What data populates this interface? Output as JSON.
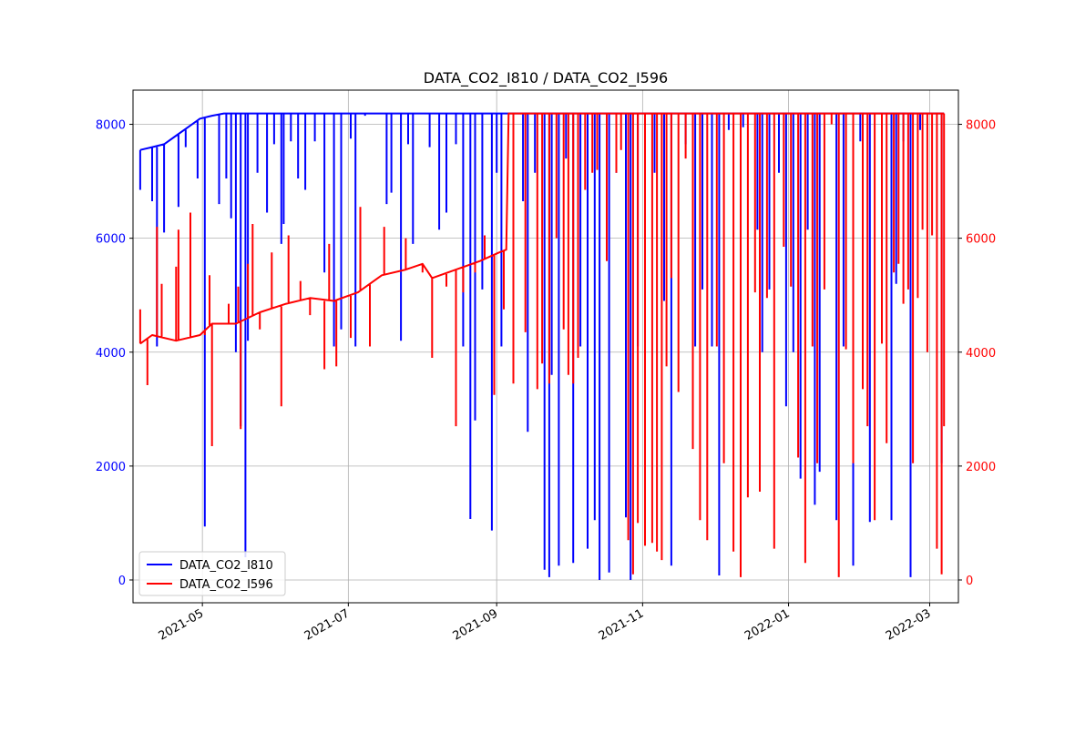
{
  "chart_data": {
    "type": "line",
    "title": "DATA_CO2_I810 / DATA_CO2_I596",
    "xlabel": "",
    "ylabel_left": "",
    "ylabel_right": "",
    "x_type": "date",
    "xlim": [
      "2021-04-02",
      "2022-03-13"
    ],
    "ylim_left": [
      -400,
      8600
    ],
    "ylim_right": [
      -400,
      8600
    ],
    "x_ticks": [
      "2021-05-01",
      "2021-07-01",
      "2021-09-01",
      "2021-11-01",
      "2022-01-01",
      "2022-03-01"
    ],
    "x_tick_labels": [
      "2021-05",
      "2021-07",
      "2021-09",
      "2021-11",
      "2022-01",
      "2022-03"
    ],
    "y_ticks_left": [
      0,
      2000,
      4000,
      6000,
      8000
    ],
    "y_ticks_right": [
      0,
      2000,
      4000,
      6000,
      8000
    ],
    "grid": true,
    "legend_position": "lower-left",
    "series": [
      {
        "name": "DATA_CO2_I810",
        "color": "#0000ff",
        "axis": "left",
        "baseline": [
          [
            "2021-04-05",
            7550
          ],
          [
            "2021-04-10",
            7600
          ],
          [
            "2021-04-15",
            7650
          ],
          [
            "2021-04-20",
            7800
          ],
          [
            "2021-04-25",
            7950
          ],
          [
            "2021-04-30",
            8100
          ],
          [
            "2021-05-05",
            8150
          ],
          [
            "2021-05-10",
            8190
          ],
          [
            "2022-03-07",
            8190
          ]
        ],
        "dips": [
          [
            "2021-04-05",
            6850
          ],
          [
            "2021-04-10",
            6650
          ],
          [
            "2021-04-12",
            4100
          ],
          [
            "2021-04-15",
            6100
          ],
          [
            "2021-04-21",
            6550
          ],
          [
            "2021-04-24",
            7600
          ],
          [
            "2021-04-29",
            7050
          ],
          [
            "2021-05-02",
            940
          ],
          [
            "2021-05-08",
            6600
          ],
          [
            "2021-05-11",
            7050
          ],
          [
            "2021-05-13",
            6350
          ],
          [
            "2021-05-15",
            4000
          ],
          [
            "2021-05-17",
            2700
          ],
          [
            "2021-05-19",
            400
          ],
          [
            "2021-05-20",
            4200
          ],
          [
            "2021-05-24",
            7150
          ],
          [
            "2021-05-28",
            6450
          ],
          [
            "2021-05-31",
            7650
          ],
          [
            "2021-06-03",
            5900
          ],
          [
            "2021-06-04",
            6250
          ],
          [
            "2021-06-07",
            7700
          ],
          [
            "2021-06-10",
            7050
          ],
          [
            "2021-06-13",
            6850
          ],
          [
            "2021-06-17",
            7700
          ],
          [
            "2021-06-21",
            5400
          ],
          [
            "2021-06-25",
            4100
          ],
          [
            "2021-06-28",
            4400
          ],
          [
            "2021-07-02",
            7750
          ],
          [
            "2021-07-04",
            4100
          ],
          [
            "2021-07-08",
            8150
          ],
          [
            "2021-07-17",
            6600
          ],
          [
            "2021-07-19",
            6800
          ],
          [
            "2021-07-23",
            4200
          ],
          [
            "2021-07-26",
            7650
          ],
          [
            "2021-07-28",
            5900
          ],
          [
            "2021-08-04",
            7600
          ],
          [
            "2021-08-08",
            6150
          ],
          [
            "2021-08-11",
            6450
          ],
          [
            "2021-08-15",
            7650
          ],
          [
            "2021-08-18",
            4100
          ],
          [
            "2021-08-21",
            1070
          ],
          [
            "2021-08-23",
            2800
          ],
          [
            "2021-08-26",
            5100
          ],
          [
            "2021-08-30",
            870
          ],
          [
            "2021-09-01",
            7150
          ],
          [
            "2021-09-03",
            4100
          ],
          [
            "2021-09-12",
            6650
          ],
          [
            "2021-09-14",
            2600
          ],
          [
            "2021-09-17",
            7150
          ],
          [
            "2021-09-21",
            180
          ],
          [
            "2021-09-23",
            50
          ],
          [
            "2021-09-24",
            3600
          ],
          [
            "2021-09-27",
            250
          ],
          [
            "2021-09-30",
            7400
          ],
          [
            "2021-10-03",
            300
          ],
          [
            "2021-10-06",
            4100
          ],
          [
            "2021-10-09",
            550
          ],
          [
            "2021-10-12",
            1050
          ],
          [
            "2021-10-14",
            0
          ],
          [
            "2021-10-18",
            130
          ],
          [
            "2021-10-21",
            7150
          ],
          [
            "2021-10-25",
            1100
          ],
          [
            "2021-10-27",
            0
          ],
          [
            "2021-10-30",
            4100
          ],
          [
            "2021-11-02",
            7900
          ],
          [
            "2021-11-06",
            7150
          ],
          [
            "2021-11-10",
            4900
          ],
          [
            "2021-11-13",
            250
          ],
          [
            "2021-11-19",
            7650
          ],
          [
            "2021-11-23",
            4100
          ],
          [
            "2021-11-26",
            5100
          ],
          [
            "2021-11-30",
            4100
          ],
          [
            "2021-12-03",
            80
          ],
          [
            "2021-12-07",
            7900
          ],
          [
            "2021-12-13",
            7950
          ],
          [
            "2021-12-19",
            6150
          ],
          [
            "2021-12-21",
            4000
          ],
          [
            "2021-12-24",
            5100
          ],
          [
            "2021-12-28",
            7150
          ],
          [
            "2021-12-31",
            3050
          ],
          [
            "2022-01-03",
            4000
          ],
          [
            "2022-01-06",
            1780
          ],
          [
            "2022-01-09",
            6150
          ],
          [
            "2022-01-12",
            1320
          ],
          [
            "2022-01-14",
            1900
          ],
          [
            "2022-01-21",
            1050
          ],
          [
            "2022-01-24",
            4100
          ],
          [
            "2022-01-28",
            250
          ],
          [
            "2022-01-31",
            7700
          ],
          [
            "2022-02-04",
            1020
          ],
          [
            "2022-02-09",
            7650
          ],
          [
            "2022-02-13",
            1050
          ],
          [
            "2022-02-15",
            5200
          ],
          [
            "2022-02-18",
            7700
          ],
          [
            "2022-02-21",
            50
          ],
          [
            "2022-02-25",
            7900
          ],
          [
            "2022-03-06",
            2050
          ]
        ]
      },
      {
        "name": "DATA_CO2_I596",
        "color": "#ff0000",
        "axis": "right",
        "baseline": [
          [
            "2021-04-05",
            4150
          ],
          [
            "2021-04-10",
            4300
          ],
          [
            "2021-04-20",
            4200
          ],
          [
            "2021-04-30",
            4300
          ],
          [
            "2021-05-05",
            4500
          ],
          [
            "2021-05-15",
            4500
          ],
          [
            "2021-05-25",
            4700
          ],
          [
            "2021-06-05",
            4850
          ],
          [
            "2021-06-15",
            4950
          ],
          [
            "2021-06-25",
            4900
          ],
          [
            "2021-07-05",
            5050
          ],
          [
            "2021-07-15",
            5350
          ],
          [
            "2021-07-25",
            5450
          ],
          [
            "2021-08-01",
            5550
          ],
          [
            "2021-08-05",
            5300
          ],
          [
            "2021-08-15",
            5450
          ],
          [
            "2021-08-25",
            5600
          ],
          [
            "2021-09-02",
            5750
          ],
          [
            "2021-09-05",
            5800
          ],
          [
            "2021-09-06",
            8190
          ],
          [
            "2022-03-07",
            8190
          ]
        ],
        "dips": [
          [
            "2021-04-05",
            4750
          ],
          [
            "2021-04-08",
            3420
          ],
          [
            "2021-04-12",
            6200
          ],
          [
            "2021-04-14",
            5200
          ],
          [
            "2021-04-20",
            5500
          ],
          [
            "2021-04-21",
            6150
          ],
          [
            "2021-04-26",
            6450
          ],
          [
            "2021-05-02",
            4300
          ],
          [
            "2021-05-04",
            5350
          ],
          [
            "2021-05-05",
            2350
          ],
          [
            "2021-05-12",
            4850
          ],
          [
            "2021-05-16",
            5150
          ],
          [
            "2021-05-17",
            2650
          ],
          [
            "2021-05-20",
            5550
          ],
          [
            "2021-05-22",
            6250
          ],
          [
            "2021-05-25",
            4400
          ],
          [
            "2021-05-30",
            5750
          ],
          [
            "2021-06-03",
            3050
          ],
          [
            "2021-06-06",
            6050
          ],
          [
            "2021-06-11",
            5250
          ],
          [
            "2021-06-15",
            4650
          ],
          [
            "2021-06-21",
            3700
          ],
          [
            "2021-06-23",
            5900
          ],
          [
            "2021-06-26",
            3750
          ],
          [
            "2021-07-02",
            4250
          ],
          [
            "2021-07-06",
            6550
          ],
          [
            "2021-07-10",
            4100
          ],
          [
            "2021-07-16",
            6200
          ],
          [
            "2021-07-25",
            6000
          ],
          [
            "2021-08-01",
            5400
          ],
          [
            "2021-08-05",
            3900
          ],
          [
            "2021-08-11",
            5150
          ],
          [
            "2021-08-15",
            2700
          ],
          [
            "2021-08-18",
            5050
          ],
          [
            "2021-08-23",
            5400
          ],
          [
            "2021-08-27",
            6050
          ],
          [
            "2021-08-31",
            3250
          ],
          [
            "2021-09-04",
            4750
          ],
          [
            "2021-09-08",
            3450
          ],
          [
            "2021-09-13",
            4350
          ],
          [
            "2021-09-18",
            3350
          ],
          [
            "2021-09-20",
            3800
          ],
          [
            "2021-09-23",
            3450
          ],
          [
            "2021-09-26",
            6000
          ],
          [
            "2021-09-29",
            4400
          ],
          [
            "2021-10-01",
            3600
          ],
          [
            "2021-10-03",
            3450
          ],
          [
            "2021-10-05",
            3900
          ],
          [
            "2021-10-08",
            6850
          ],
          [
            "2021-10-11",
            7150
          ],
          [
            "2021-10-13",
            7200
          ],
          [
            "2021-10-17",
            5600
          ],
          [
            "2021-10-21",
            7150
          ],
          [
            "2021-10-23",
            7550
          ],
          [
            "2021-10-26",
            700
          ],
          [
            "2021-10-28",
            100
          ],
          [
            "2021-10-30",
            1000
          ],
          [
            "2021-11-02",
            600
          ],
          [
            "2021-11-05",
            650
          ],
          [
            "2021-11-07",
            500
          ],
          [
            "2021-11-09",
            350
          ],
          [
            "2021-11-11",
            3750
          ],
          [
            "2021-11-13",
            5300
          ],
          [
            "2021-11-16",
            3300
          ],
          [
            "2021-11-19",
            7400
          ],
          [
            "2021-11-22",
            2300
          ],
          [
            "2021-11-25",
            1050
          ],
          [
            "2021-11-28",
            700
          ],
          [
            "2021-12-02",
            4100
          ],
          [
            "2021-12-05",
            2050
          ],
          [
            "2021-12-09",
            500
          ],
          [
            "2021-12-12",
            50
          ],
          [
            "2021-12-15",
            1450
          ],
          [
            "2021-12-18",
            5050
          ],
          [
            "2021-12-20",
            1550
          ],
          [
            "2021-12-23",
            4950
          ],
          [
            "2021-12-26",
            550
          ],
          [
            "2021-12-30",
            5850
          ],
          [
            "2022-01-02",
            5150
          ],
          [
            "2022-01-05",
            2150
          ],
          [
            "2022-01-08",
            300
          ],
          [
            "2022-01-11",
            4100
          ],
          [
            "2022-01-13",
            2050
          ],
          [
            "2022-01-16",
            5100
          ],
          [
            "2022-01-19",
            8000
          ],
          [
            "2022-01-22",
            50
          ],
          [
            "2022-01-25",
            4050
          ],
          [
            "2022-01-28",
            2050
          ],
          [
            "2022-02-01",
            3350
          ],
          [
            "2022-02-03",
            2700
          ],
          [
            "2022-02-06",
            1050
          ],
          [
            "2022-02-09",
            4150
          ],
          [
            "2022-02-11",
            2400
          ],
          [
            "2022-02-14",
            5400
          ],
          [
            "2022-02-16",
            5550
          ],
          [
            "2022-02-18",
            4850
          ],
          [
            "2022-02-20",
            5100
          ],
          [
            "2022-02-22",
            2050
          ],
          [
            "2022-02-24",
            4950
          ],
          [
            "2022-02-26",
            6150
          ],
          [
            "2022-02-28",
            4000
          ],
          [
            "2022-03-02",
            6050
          ],
          [
            "2022-03-04",
            550
          ],
          [
            "2022-03-06",
            100
          ],
          [
            "2022-03-07",
            2700
          ]
        ]
      }
    ]
  }
}
